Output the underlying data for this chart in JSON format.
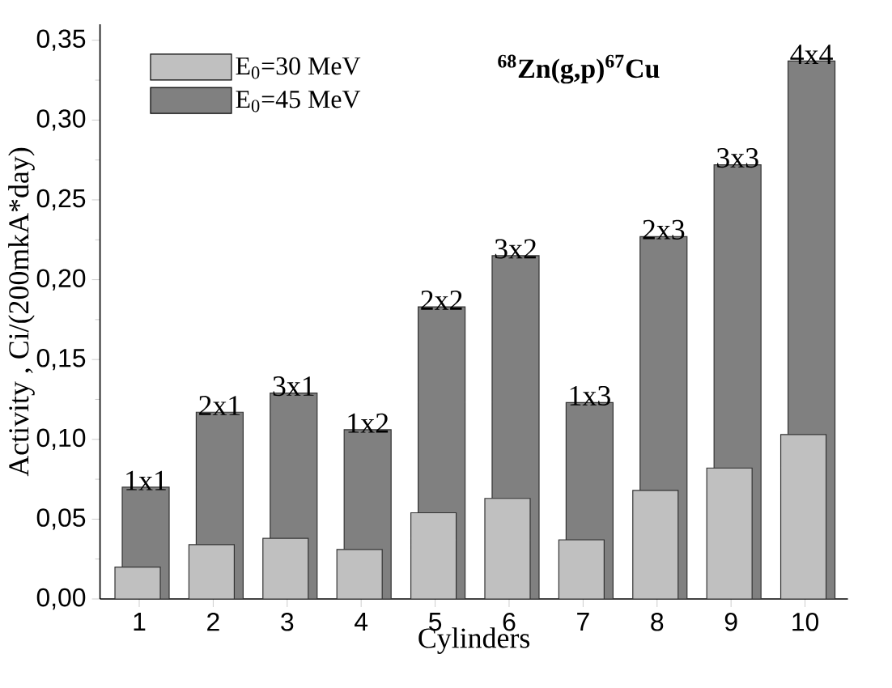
{
  "chart_data": {
    "type": "bar",
    "title": "$^{68}$Zn(g,p)$^{67}$Cu",
    "xlabel": "Cylinders",
    "ylabel": "Activity , Ci/(200mkA*day)",
    "categories": [
      "1",
      "2",
      "3",
      "4",
      "5",
      "6",
      "7",
      "8",
      "9",
      "10"
    ],
    "series": [
      {
        "name": "E$_{0}$=30 MeV",
        "color": "#c0c0c0",
        "values": [
          0.02,
          0.034,
          0.038,
          0.031,
          0.054,
          0.063,
          0.037,
          0.068,
          0.082,
          0.103
        ]
      },
      {
        "name": "E$_{0}$=45 MeV",
        "color": "#808080",
        "values": [
          0.07,
          0.117,
          0.129,
          0.106,
          0.183,
          0.215,
          0.123,
          0.227,
          0.272,
          0.337
        ]
      }
    ],
    "ylim": [
      0,
      0.36
    ],
    "yticks": [
      {
        "value": 0,
        "label": "0,00"
      },
      {
        "value": 0.05,
        "label": "0,05"
      },
      {
        "value": 0.1,
        "label": "0,10"
      },
      {
        "value": 0.15,
        "label": "0,15"
      },
      {
        "value": 0.2,
        "label": "0,20"
      },
      {
        "value": 0.25,
        "label": "0,25"
      },
      {
        "value": 0.3,
        "label": "0,30"
      },
      {
        "value": 0.35,
        "label": "0,35"
      }
    ],
    "annotations": [
      {
        "text": "1x1",
        "x": "1",
        "y": 0.07
      },
      {
        "text": "2x1",
        "x": "2",
        "y": 0.117
      },
      {
        "text": "3x1",
        "x": "3",
        "y": 0.129
      },
      {
        "text": "1x2",
        "x": "4",
        "y": 0.106
      },
      {
        "text": "2x2",
        "x": "5",
        "y": 0.183
      },
      {
        "text": "3x2",
        "x": "6",
        "y": 0.215
      },
      {
        "text": "1x3",
        "x": "7",
        "y": 0.123
      },
      {
        "text": "2x3",
        "x": "8",
        "y": 0.227
      },
      {
        "text": "3x3",
        "x": "9",
        "y": 0.272
      },
      {
        "text": "4x4",
        "x": "10",
        "y": 0.337
      }
    ],
    "grid": false,
    "legend": "top left"
  }
}
